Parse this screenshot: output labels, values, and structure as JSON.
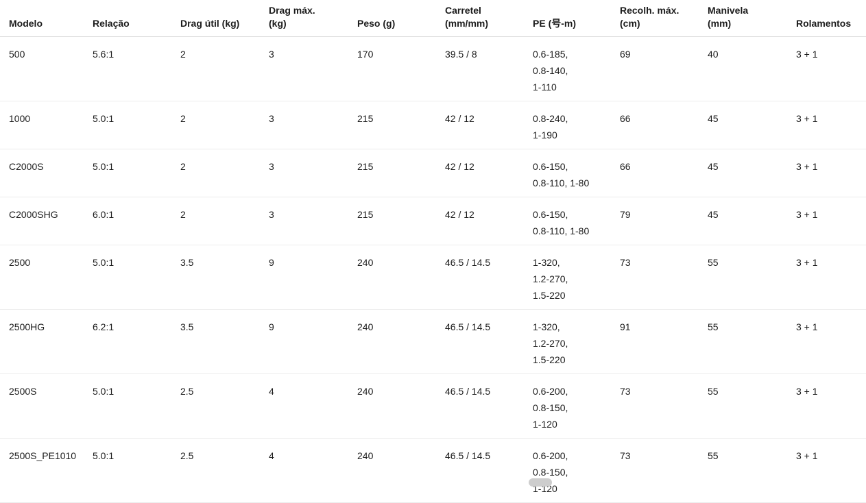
{
  "page": {
    "background": "#ffffff",
    "text_color": "#1b1b1b",
    "header_border_color": "#dcdcdc",
    "row_border_color": "#ececec"
  },
  "table": {
    "columns": [
      "Modelo",
      "Relação",
      "Drag útil (kg)",
      "Drag máx.\n(kg)",
      "Peso (g)",
      "Carretel\n(mm/mm)",
      "PE (号-m)",
      "Recolh. máx.\n(cm)",
      "Manivela\n(mm)",
      "Rolamentos"
    ],
    "rows": [
      [
        "500",
        "5.6:1",
        "2",
        "3",
        "170",
        "39.5 / 8",
        "0.6-185,\n0.8-140,\n1-110",
        "69",
        "40",
        "3 + 1"
      ],
      [
        "1000",
        "5.0:1",
        "2",
        "3",
        "215",
        "42 / 12",
        "0.8-240,\n1-190",
        "66",
        "45",
        "3 + 1"
      ],
      [
        "C2000S",
        "5.0:1",
        "2",
        "3",
        "215",
        "42 / 12",
        "0.6-150,\n0.8-110, 1-80",
        "66",
        "45",
        "3 + 1"
      ],
      [
        "C2000SHG",
        "6.0:1",
        "2",
        "3",
        "215",
        "42 / 12",
        "0.6-150,\n0.8-110, 1-80",
        "79",
        "45",
        "3 + 1"
      ],
      [
        "2500",
        "5.0:1",
        "3.5",
        "9",
        "240",
        "46.5 / 14.5",
        "1-320,\n1.2-270,\n1.5-220",
        "73",
        "55",
        "3 + 1"
      ],
      [
        "2500HG",
        "6.2:1",
        "3.5",
        "9",
        "240",
        "46.5 / 14.5",
        "1-320,\n1.2-270,\n1.5-220",
        "91",
        "55",
        "3 + 1"
      ],
      [
        "2500S",
        "5.0:1",
        "2.5",
        "4",
        "240",
        "46.5 / 14.5",
        "0.6-200,\n0.8-150,\n1-120",
        "73",
        "55",
        "3 + 1"
      ],
      [
        "2500S_PE1010",
        "5.0:1",
        "2.5",
        "4",
        "240",
        "46.5 / 14.5",
        "0.6-200,\n0.8-150,\n1-120",
        "73",
        "55",
        "3 + 1"
      ]
    ]
  }
}
